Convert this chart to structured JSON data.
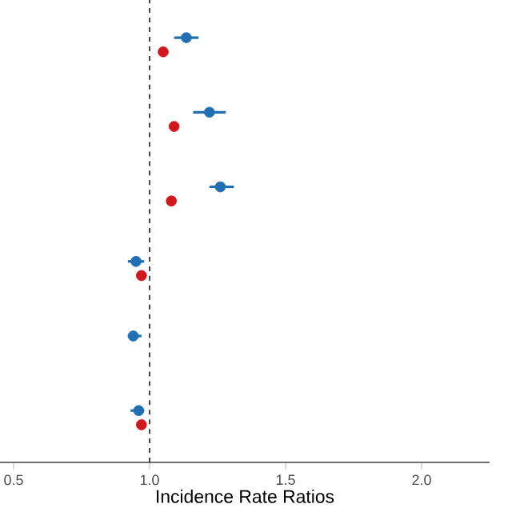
{
  "chart_data": {
    "type": "scatter",
    "orientation": "horizontal",
    "categories": [
      null,
      null,
      null,
      null,
      null,
      null
    ],
    "xlabel": "Incidence Rate Ratios",
    "xlim": [
      0.45,
      2.25
    ],
    "xticks": [
      {
        "value": 0.5,
        "label": "0.5"
      },
      {
        "value": 1,
        "label": "1.0"
      },
      {
        "value": 1.5,
        "label": "1.5"
      },
      {
        "value": 2,
        "label": "2.0"
      }
    ],
    "tick_labels": "x",
    "series": [
      {
        "color": "#1f6fb2",
        "values": [
          1.135,
          1.22,
          1.26,
          0.95,
          0.94,
          0.96
        ],
        "errors": [
          [
            1.09,
            1.18
          ],
          [
            1.16,
            1.28
          ],
          [
            1.22,
            1.31
          ],
          [
            0.92,
            0.98
          ],
          [
            0.92,
            0.97
          ],
          [
            0.93,
            0.98
          ]
        ]
      },
      {
        "color": "#d0161e",
        "values": [
          1.05,
          1.09,
          1.08,
          0.97,
          null,
          0.97
        ]
      }
    ],
    "ref_lines": [
      {
        "axis": "x",
        "value": 1,
        "line_style": "dashed",
        "color": "#333333"
      }
    ]
  }
}
